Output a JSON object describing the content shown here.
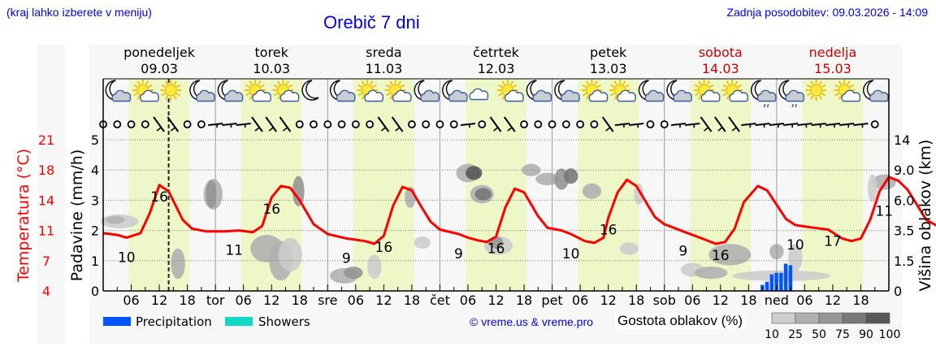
{
  "header": {
    "hint": "(kraj lahko izberete v meniju)",
    "title": "Orebič 7 dni",
    "updated": "Zadnja posodobitev: 09.03.2026 - 14:09"
  },
  "colors": {
    "link_blue": "#0000ee",
    "temperature": "#ff0000",
    "daylight": "#eef7c8",
    "precipitation": "#0055ff",
    "showers": "#11d9c6",
    "weekend": "#cc0000"
  },
  "days": [
    {
      "name": "ponedeljek",
      "date": "09.03",
      "abbr": "",
      "weekend": false
    },
    {
      "name": "torek",
      "date": "10.03",
      "abbr": "tor",
      "weekend": false
    },
    {
      "name": "sreda",
      "date": "11.03",
      "abbr": "sre",
      "weekend": false
    },
    {
      "name": "četrtek",
      "date": "12.03",
      "abbr": "čet",
      "weekend": false
    },
    {
      "name": "petek",
      "date": "13.03",
      "abbr": "pet",
      "weekend": false
    },
    {
      "name": "sobota",
      "date": "14.03",
      "abbr": "sob",
      "weekend": true
    },
    {
      "name": "nedelja",
      "date": "15.03",
      "abbr": "ned",
      "weekend": true
    }
  ],
  "legend": {
    "precipitation": "Precipitation",
    "showers": "Showers",
    "copyright": "© vreme.us & vreme.pro",
    "cloud_density_title": "Gostota oblakov (%)",
    "cloud_density_levels": [
      "10",
      "25",
      "50",
      "75",
      "90",
      "100"
    ],
    "cloud_density_colors": [
      "#cccccc",
      "#b0b0b0",
      "#959595",
      "#787878",
      "#585858"
    ]
  },
  "chart_data": {
    "type": "line",
    "title": "Orebič 7 dni",
    "x_unit": "hours from 09.03 00:00",
    "hour_tick_labels": [
      "06",
      "12",
      "18"
    ],
    "axes": {
      "left_outer": {
        "label": "Temperatura (°C)",
        "ticks": [
          "4",
          "7",
          "11",
          "14",
          "18",
          "21"
        ],
        "color": "#ff0000"
      },
      "left_inner": {
        "label": "Padavine (mm/h)",
        "ticks": [
          "0",
          "1",
          "2",
          "3",
          "4",
          "5"
        ],
        "range": [
          0,
          5
        ]
      },
      "right": {
        "label": "Višina oblakov (km)",
        "ticks": [
          "0",
          "1.5",
          "3.5",
          "6.0",
          "9.0",
          "14"
        ]
      }
    },
    "grid": true,
    "now_marker_hour": 14,
    "series": [
      {
        "name": "Temperatura",
        "unit": "°C",
        "color": "#ff0000",
        "points": [
          [
            0,
            10.5
          ],
          [
            3,
            10.3
          ],
          [
            5,
            10.0
          ],
          [
            8,
            10.5
          ],
          [
            10,
            12.8
          ],
          [
            12,
            15.9
          ],
          [
            14,
            15.2
          ],
          [
            17,
            12.0
          ],
          [
            19,
            11.0
          ],
          [
            22,
            10.7
          ],
          [
            26,
            10.7
          ],
          [
            29,
            10.8
          ],
          [
            32,
            10.6
          ],
          [
            34,
            11.3
          ],
          [
            36,
            14.5
          ],
          [
            38,
            15.8
          ],
          [
            40,
            15.6
          ],
          [
            42,
            14.2
          ],
          [
            45,
            11.5
          ],
          [
            48,
            10.4
          ],
          [
            52,
            9.9
          ],
          [
            56,
            9.6
          ],
          [
            58,
            9.3
          ],
          [
            60,
            10.2
          ],
          [
            62,
            13.6
          ],
          [
            64,
            15.7
          ],
          [
            66,
            15.3
          ],
          [
            68,
            13.5
          ],
          [
            70,
            11.8
          ],
          [
            72,
            10.9
          ],
          [
            76,
            10.4
          ],
          [
            78,
            10.0
          ],
          [
            80,
            9.7
          ],
          [
            82,
            9.5
          ],
          [
            84,
            10.1
          ],
          [
            86,
            13.4
          ],
          [
            88,
            15.5
          ],
          [
            90,
            15.1
          ],
          [
            93,
            12.4
          ],
          [
            95,
            11.1
          ],
          [
            98,
            10.8
          ],
          [
            100,
            10.4
          ],
          [
            103,
            9.6
          ],
          [
            105,
            9.4
          ],
          [
            107,
            10.0
          ],
          [
            108,
            12.2
          ],
          [
            110,
            15.1
          ],
          [
            112,
            16.5
          ],
          [
            114,
            15.8
          ],
          [
            118,
            12.3
          ],
          [
            120,
            11.5
          ],
          [
            124,
            10.7
          ],
          [
            128,
            9.9
          ],
          [
            131,
            9.3
          ],
          [
            133,
            9.5
          ],
          [
            135,
            11.0
          ],
          [
            137,
            14.0
          ],
          [
            140,
            15.8
          ],
          [
            142,
            15.3
          ],
          [
            146,
            12.1
          ],
          [
            148,
            11.4
          ],
          [
            152,
            11.1
          ],
          [
            155,
            10.9
          ],
          [
            158,
            9.9
          ],
          [
            160,
            9.6
          ],
          [
            162,
            9.9
          ],
          [
            164,
            12.0
          ],
          [
            166,
            15.2
          ],
          [
            168,
            16.8
          ],
          [
            170,
            16.4
          ],
          [
            172,
            15.4
          ],
          [
            176,
            12.0
          ],
          [
            178,
            11.4
          ],
          [
            182,
            10.9
          ],
          [
            184,
            10.7
          ]
        ],
        "labels": [
          {
            "hour": 5,
            "value": "10",
            "pos": "below"
          },
          {
            "hour": 12,
            "value": "16",
            "pos": "on"
          },
          {
            "hour": 28,
            "value": "11",
            "pos": "below"
          },
          {
            "hour": 36,
            "value": "16",
            "pos": "on"
          },
          {
            "hour": 52,
            "value": "9",
            "pos": "below"
          },
          {
            "hour": 60,
            "value": "16",
            "pos": "on"
          },
          {
            "hour": 76,
            "value": "9",
            "pos": "below"
          },
          {
            "hour": 84,
            "value": "16",
            "pos": "on"
          },
          {
            "hour": 100,
            "value": "10",
            "pos": "below"
          },
          {
            "hour": 108,
            "value": "16",
            "pos": "on"
          },
          {
            "hour": 124,
            "value": "9",
            "pos": "below"
          },
          {
            "hour": 132,
            "value": "16",
            "pos": "on"
          },
          {
            "hour": 148,
            "value": "10",
            "pos": "below"
          },
          {
            "hour": 156,
            "value": "17",
            "pos": "on"
          },
          {
            "hour": 167,
            "value": "11",
            "pos": "below"
          }
        ]
      },
      {
        "name": "Precipitation",
        "unit": "mm/h",
        "color": "#0055ff",
        "type": "bar",
        "points": [
          [
            141,
            0.2
          ],
          [
            142,
            0.3
          ],
          [
            143,
            0.55
          ],
          [
            144,
            0.6
          ],
          [
            145,
            0.6
          ],
          [
            146,
            0.9
          ],
          [
            147,
            0.85
          ]
        ]
      },
      {
        "name": "Showers",
        "unit": "mm/h",
        "color": "#11d9c6",
        "type": "bar",
        "points": []
      }
    ],
    "weather_icons": [
      "moon-cloud",
      "sun-cloud",
      "sun",
      "moon-cloud",
      "moon-cloud",
      "sun-cloud",
      "sun-cloud",
      "moon",
      "moon-cloud",
      "sun-cloud",
      "sun-cloud",
      "moon-cloud",
      "moon-cloud",
      "cloud",
      "sun-cloud",
      "moon-cloud",
      "moon-cloud",
      "sun-cloud",
      "sun-cloud",
      "moon-cloud",
      "moon-cloud",
      "sun-cloud",
      "sun-cloud",
      "moon-rain",
      "moon-rain",
      "sun",
      "sun-cloud",
      "moon-cloud"
    ]
  }
}
